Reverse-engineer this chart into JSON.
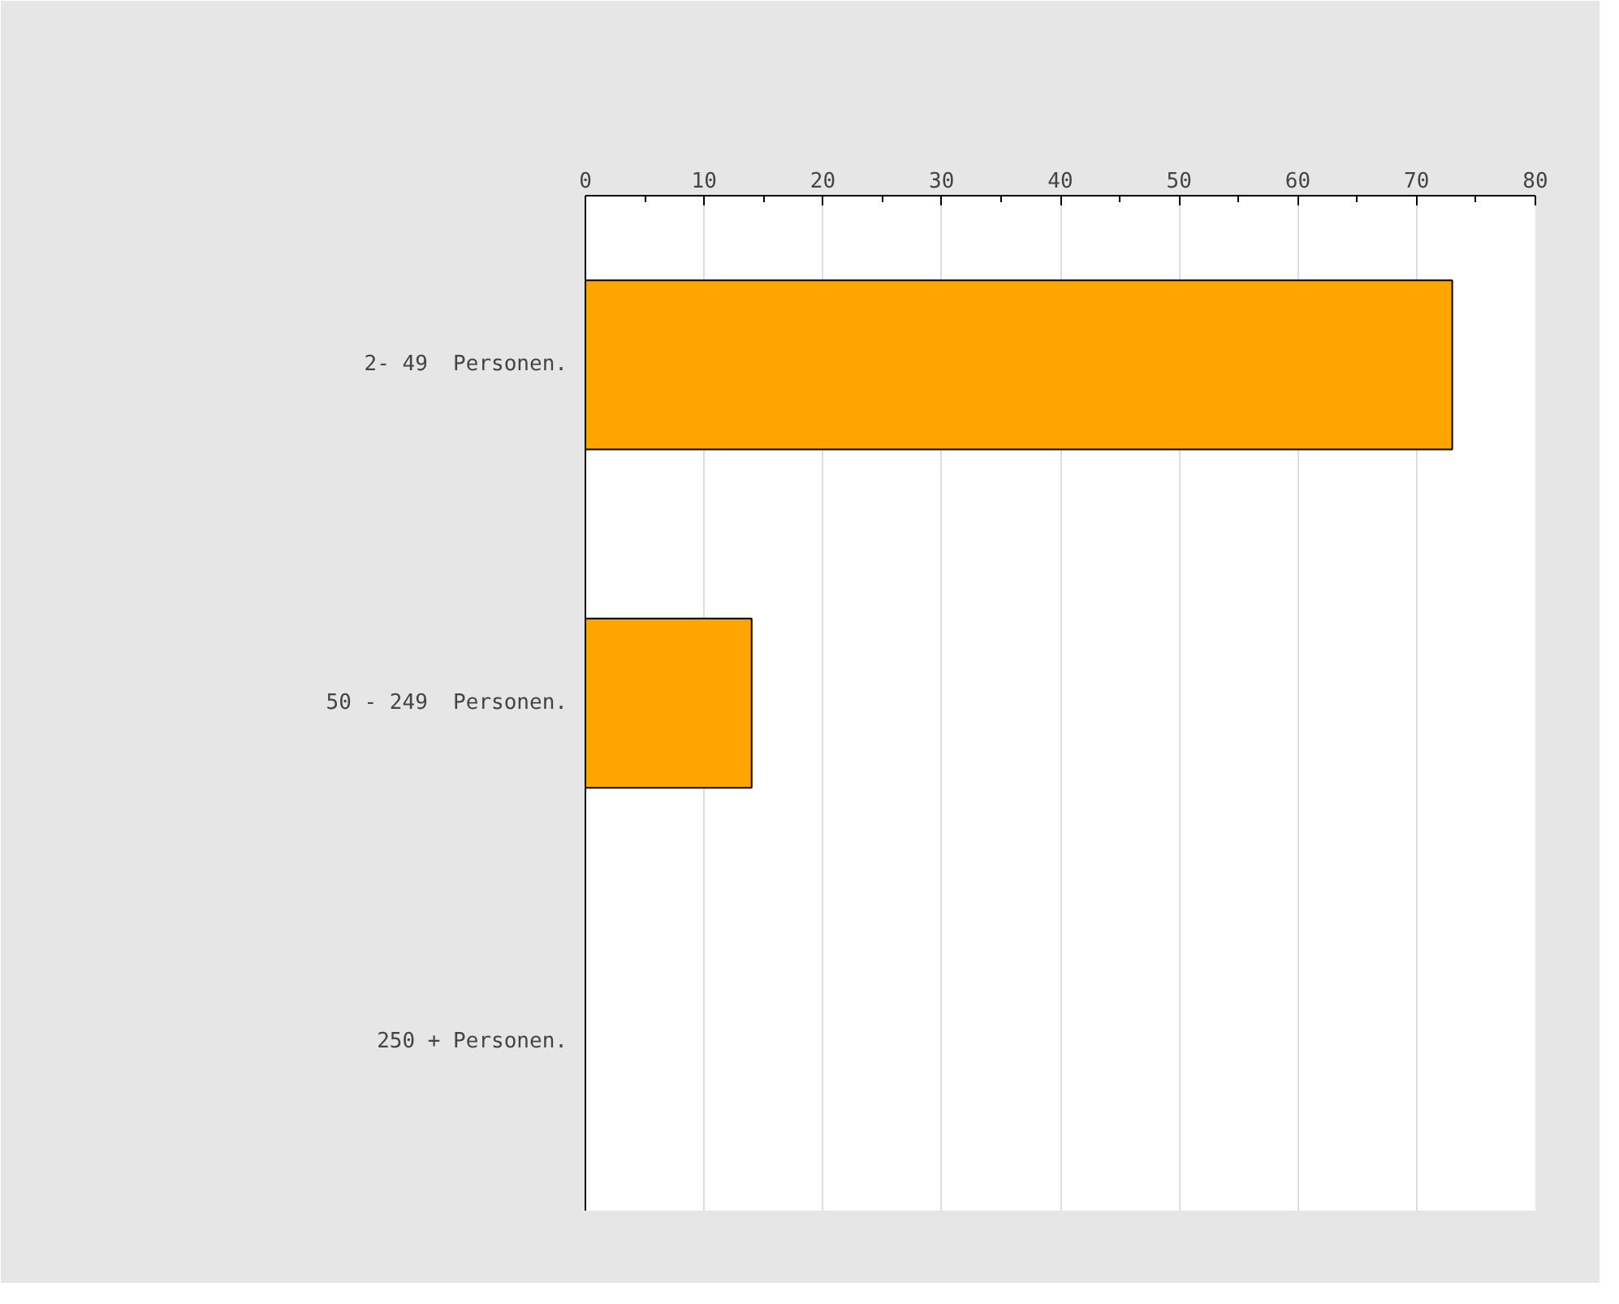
{
  "chart_data": {
    "type": "bar",
    "orientation": "horizontal",
    "categories": [
      "2- 49  Personen.",
      "50 - 249  Personen.",
      "250 + Personen."
    ],
    "values": [
      73,
      14,
      0
    ],
    "color": "#ffa500",
    "xlim": [
      0,
      80
    ],
    "xticks": [
      0,
      10,
      20,
      30,
      40,
      50,
      60,
      70,
      80
    ],
    "grid": "x"
  }
}
